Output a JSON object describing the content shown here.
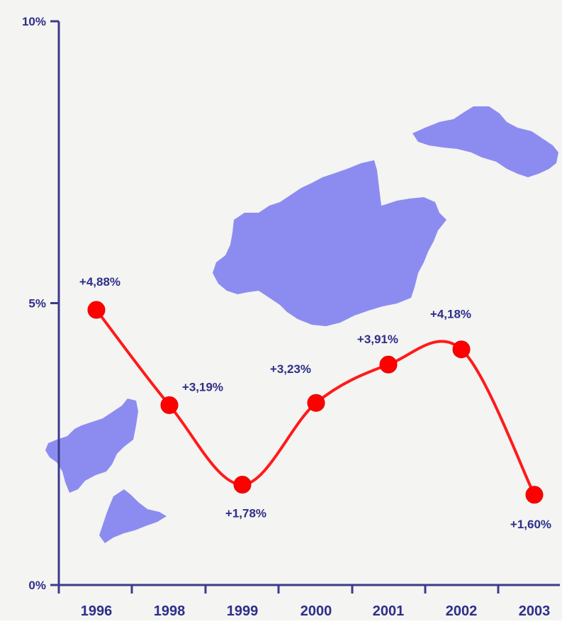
{
  "chart_data": {
    "type": "line",
    "categories": [
      "1996",
      "1998",
      "1999",
      "2000",
      "2001",
      "2002",
      "2003"
    ],
    "series": [
      {
        "values": [
          4.88,
          3.19,
          1.78,
          3.23,
          3.91,
          4.18,
          1.6
        ],
        "data_labels": [
          "+4,88%",
          "+3,19%",
          "+1,78%",
          "+3,23%",
          "+3,91%",
          "+4,18%",
          "+1,60%"
        ]
      }
    ],
    "y_ticks": [
      0,
      5,
      10
    ],
    "y_tick_labels": [
      "0%",
      "5%",
      "10%"
    ],
    "ylim": [
      0,
      10
    ],
    "grid": false,
    "smooth": true,
    "line_color": "#ff1a1a",
    "marker_color": "#ff0000",
    "label_color": "#2e2e8a",
    "axis_color": "#3b3b8c",
    "map_color": "#8c8cf0",
    "background_color": "#f4f4f2"
  }
}
